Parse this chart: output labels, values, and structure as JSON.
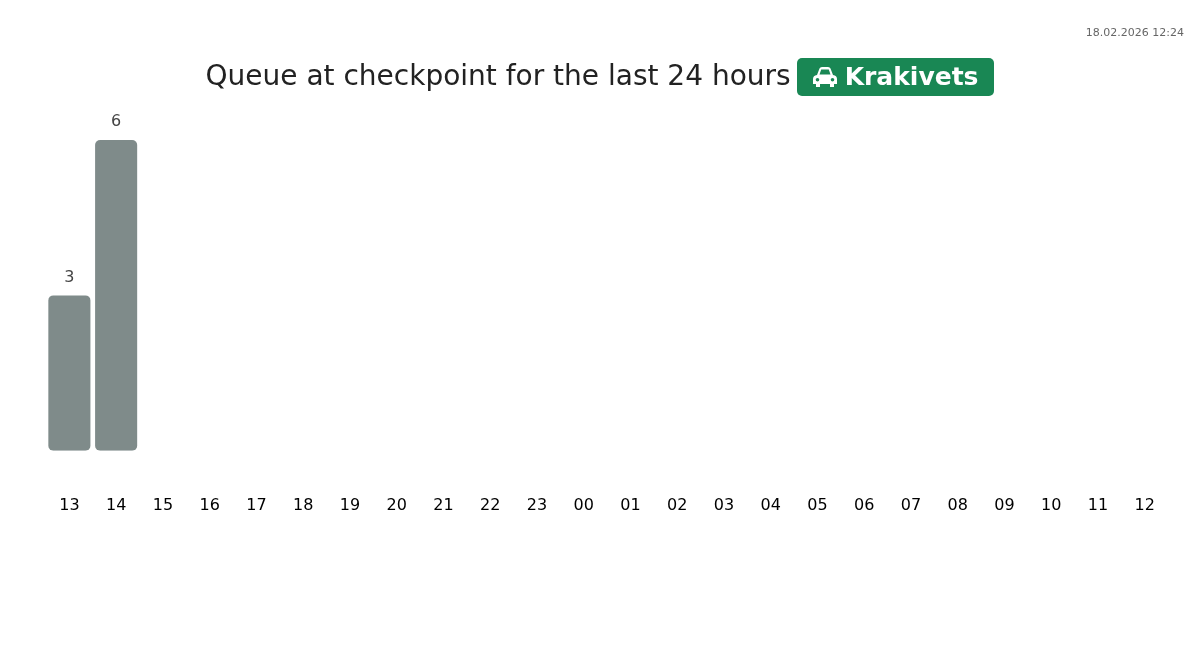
{
  "chart_data": {
    "type": "bar",
    "title": "Queue at checkpoint for the last 24 hours",
    "subtitle": "Krakivets",
    "categories": [
      "13",
      "14",
      "15",
      "16",
      "17",
      "18",
      "19",
      "20",
      "21",
      "22",
      "23",
      "00",
      "01",
      "02",
      "03",
      "04",
      "05",
      "06",
      "07",
      "08",
      "09",
      "10",
      "11",
      "12"
    ],
    "values": [
      3,
      6,
      null,
      null,
      null,
      null,
      null,
      null,
      null,
      null,
      null,
      null,
      null,
      null,
      null,
      null,
      null,
      null,
      null,
      null,
      null,
      null,
      null,
      null
    ],
    "color": "#7f8b8a",
    "data_labels": true,
    "grid": false,
    "legend": false,
    "tick_labels": "x",
    "annotations": [
      "18.02.2026 12:24"
    ]
  }
}
